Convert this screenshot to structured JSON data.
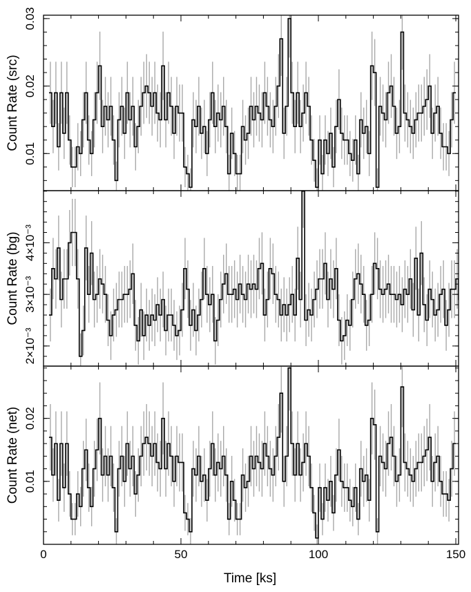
{
  "x_axis": {
    "label": "Time [ks]",
    "ticks": [
      0,
      50,
      100,
      150
    ]
  },
  "panels": [
    {
      "id": "src",
      "ylabel": "Count Rate (src)",
      "ylim": [
        0.0045,
        0.0305
      ],
      "ticks": [
        {
          "v": 0.01,
          "label": "0.01"
        },
        {
          "v": 0.02,
          "label": "0.02"
        },
        {
          "v": 0.03,
          "label": "0.03"
        }
      ]
    },
    {
      "id": "bg",
      "ylabel": "Count Rate (bg)",
      "ylim": [
        0.00161,
        0.00501
      ],
      "ticks": [
        {
          "v": 0.002,
          "label": "2×10⁻³"
        },
        {
          "v": 0.003,
          "label": "3×10⁻³"
        },
        {
          "v": 0.004,
          "label": "4×10⁻³"
        }
      ]
    },
    {
      "id": "net",
      "ylabel": "Count Rate (net)",
      "ylim": [
        0.0,
        0.0283
      ],
      "ticks": [
        {
          "v": 0.01,
          "label": "0.01"
        },
        {
          "v": 0.02,
          "label": "0.02"
        }
      ]
    }
  ],
  "chart_data": {
    "type": "line",
    "xlabel": "Time [ks]",
    "xlim": [
      0,
      151
    ],
    "bin_width": 1,
    "x_start": 2.5,
    "x_step": 1,
    "series": [
      {
        "name": "Count Rate (src)",
        "ylim": [
          0.0045,
          0.0305
        ],
        "values": [
          0.019,
          0.014,
          0.019,
          0.011,
          0.019,
          0.013,
          0.019,
          0.012,
          0.008,
          0.008,
          0.011,
          0.01,
          0.015,
          0.019,
          0.012,
          0.01,
          0.015,
          0.019,
          0.023,
          0.014,
          0.017,
          0.015,
          0.017,
          0.012,
          0.006,
          0.015,
          0.017,
          0.013,
          0.019,
          0.015,
          0.017,
          0.011,
          0.014,
          0.017,
          0.019,
          0.02,
          0.019,
          0.017,
          0.019,
          0.016,
          0.015,
          0.023,
          0.015,
          0.019,
          0.017,
          0.013,
          0.017,
          0.016,
          0.016,
          0.008,
          0.007,
          0.005,
          0.015,
          0.014,
          0.017,
          0.013,
          0.014,
          0.01,
          0.015,
          0.019,
          0.014,
          0.016,
          0.015,
          0.017,
          0.014,
          0.007,
          0.013,
          0.01,
          0.007,
          0.007,
          0.014,
          0.012,
          0.013,
          0.017,
          0.015,
          0.017,
          0.016,
          0.015,
          0.019,
          0.017,
          0.015,
          0.014,
          0.017,
          0.02,
          0.027,
          0.013,
          0.017,
          0.03,
          0.019,
          0.014,
          0.019,
          0.014,
          0.016,
          0.019,
          0.017,
          0.012,
          0.009,
          0.005,
          0.012,
          0.007,
          0.012,
          0.01,
          0.013,
          0.008,
          0.014,
          0.018,
          0.013,
          0.012,
          0.012,
          0.01,
          0.009,
          0.012,
          0.007,
          0.015,
          0.013,
          0.014,
          0.01,
          0.023,
          0.022,
          0.005,
          0.017,
          0.016,
          0.015,
          0.019,
          0.02,
          0.017,
          0.013,
          0.014,
          0.028,
          0.016,
          0.015,
          0.014,
          0.013,
          0.015,
          0.016,
          0.016,
          0.017,
          0.018,
          0.02,
          0.013,
          0.016,
          0.017,
          0.013,
          0.011,
          0.011,
          0.01,
          0.015,
          0.019
        ]
      },
      {
        "name": "Count Rate (bg)",
        "ylim": [
          0.00161,
          0.00501
        ],
        "values": [
          0.0026,
          0.0035,
          0.0033,
          0.0039,
          0.0029,
          0.0033,
          0.0033,
          0.004,
          0.0042,
          0.0042,
          0.0033,
          0.0018,
          0.0023,
          0.0039,
          0.003,
          0.0038,
          0.0029,
          0.003,
          0.0033,
          0.0032,
          0.003,
          0.0025,
          0.0022,
          0.0026,
          0.0027,
          0.0029,
          0.0029,
          0.003,
          0.003,
          0.0031,
          0.0034,
          0.0024,
          0.0021,
          0.0027,
          0.0022,
          0.0026,
          0.0024,
          0.0026,
          0.0025,
          0.0028,
          0.0026,
          0.0029,
          0.0023,
          0.0026,
          0.0026,
          0.0024,
          0.0022,
          0.0023,
          0.0027,
          0.0035,
          0.0031,
          0.0024,
          0.0027,
          0.0023,
          0.0026,
          0.0029,
          0.0035,
          0.003,
          0.0028,
          0.003,
          0.0021,
          0.0025,
          0.0029,
          0.0032,
          0.0034,
          0.003,
          0.003,
          0.0031,
          0.0029,
          0.0032,
          0.003,
          0.0029,
          0.0032,
          0.0031,
          0.0032,
          0.0031,
          0.0035,
          0.0036,
          0.0026,
          0.0029,
          0.0035,
          0.0034,
          0.003,
          0.0029,
          0.0026,
          0.0028,
          0.0026,
          0.0028,
          0.003,
          0.0026,
          0.0037,
          0.0029,
          0.005,
          0.0025,
          0.0027,
          0.0026,
          0.0029,
          0.0031,
          0.0033,
          0.0033,
          0.0036,
          0.0029,
          0.0033,
          0.0031,
          0.0035,
          0.0025,
          0.0021,
          0.0022,
          0.0025,
          0.0024,
          0.0029,
          0.0033,
          0.0034,
          0.0032,
          0.003,
          0.0024,
          0.0025,
          0.003,
          0.0036,
          0.0035,
          0.0031,
          0.003,
          0.0031,
          0.0032,
          0.003,
          0.003,
          0.0029,
          0.003,
          0.0028,
          0.0031,
          0.003,
          0.0033,
          0.0027,
          0.0037,
          0.0026,
          0.0038,
          0.0028,
          0.0025,
          0.0031,
          0.0029,
          0.0026,
          0.0027,
          0.003,
          0.0031,
          0.0024,
          0.0027,
          0.0031,
          0.0031,
          0.0033,
          0.0029,
          0.0033
        ]
      },
      {
        "name": "Count Rate (net)",
        "ylim": [
          0.0,
          0.0283
        ],
        "values": [
          0.017,
          0.011,
          0.016,
          0.007,
          0.016,
          0.009,
          0.016,
          0.008,
          0.004,
          0.004,
          0.008,
          0.006,
          0.012,
          0.015,
          0.009,
          0.006,
          0.012,
          0.015,
          0.02,
          0.011,
          0.014,
          0.011,
          0.014,
          0.009,
          0.002,
          0.012,
          0.014,
          0.01,
          0.016,
          0.012,
          0.014,
          0.008,
          0.011,
          0.014,
          0.016,
          0.017,
          0.016,
          0.014,
          0.016,
          0.013,
          0.012,
          0.02,
          0.012,
          0.016,
          0.014,
          0.01,
          0.014,
          0.013,
          0.013,
          0.005,
          0.004,
          0.002,
          0.012,
          0.011,
          0.014,
          0.01,
          0.011,
          0.007,
          0.012,
          0.016,
          0.011,
          0.013,
          0.012,
          0.014,
          0.011,
          0.004,
          0.01,
          0.007,
          0.004,
          0.004,
          0.011,
          0.009,
          0.01,
          0.014,
          0.012,
          0.014,
          0.013,
          0.012,
          0.016,
          0.014,
          0.012,
          0.011,
          0.014,
          0.017,
          0.024,
          0.01,
          0.014,
          0.028,
          0.016,
          0.011,
          0.016,
          0.011,
          0.013,
          0.016,
          0.014,
          0.009,
          0.005,
          0.001,
          0.009,
          0.004,
          0.009,
          0.007,
          0.01,
          0.005,
          0.011,
          0.015,
          0.01,
          0.009,
          0.009,
          0.007,
          0.006,
          0.009,
          0.004,
          0.012,
          0.01,
          0.011,
          0.007,
          0.02,
          0.019,
          0.002,
          0.014,
          0.013,
          0.012,
          0.016,
          0.017,
          0.014,
          0.01,
          0.011,
          0.025,
          0.013,
          0.012,
          0.011,
          0.01,
          0.012,
          0.013,
          0.013,
          0.014,
          0.015,
          0.017,
          0.01,
          0.013,
          0.014,
          0.01,
          0.008,
          0.008,
          0.007,
          0.012,
          0.016
        ]
      }
    ]
  }
}
